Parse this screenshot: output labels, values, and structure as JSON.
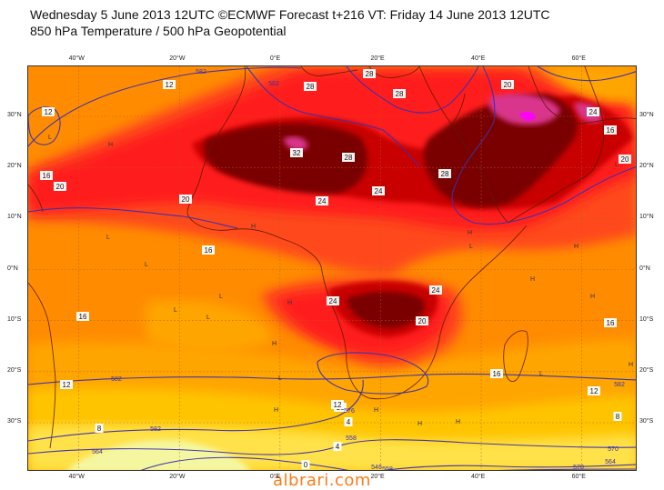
{
  "header": {
    "title_line1": "Wednesday 5 June 2013 12UTC ©ECMWF Forecast t+216 VT: Friday 14 June 2013 12UTC",
    "title_line2": "850 hPa Temperature / 500 hPa Geopotential"
  },
  "map": {
    "lon_ticks": [
      "40°W",
      "20°W",
      "0°E",
      "20°E",
      "40°E",
      "60°E"
    ],
    "lat_ticks": [
      "30°N",
      "20°N",
      "10°N",
      "0°N",
      "10°S",
      "20°S",
      "30°S"
    ],
    "colors": {
      "deep_orange": "#ff8c00",
      "orange": "#ffa500",
      "light_orange": "#ffc400",
      "yellow": "#ffe24a",
      "pale_yellow": "#f4f7a0",
      "red_orange": "#ff4a1a",
      "red": "#ff1a1a",
      "dark_red": "#c80000",
      "maroon": "#7a0000",
      "magenta": "#d9348c",
      "bright_magenta": "#ff00ff",
      "contour": "#3a2fb0",
      "coast": "#5a1a00"
    },
    "temperature_labels": [
      "12",
      "12",
      "16",
      "20",
      "20",
      "16",
      "16",
      "28",
      "32",
      "28",
      "24",
      "28",
      "24",
      "28",
      "28",
      "24",
      "20",
      "24",
      "20",
      "16",
      "16",
      "16",
      "12",
      "12",
      "8",
      "8",
      "4",
      "4",
      "0",
      "20",
      "24",
      "16",
      "12"
    ],
    "geopotential_labels": [
      "582",
      "582",
      "582",
      "582",
      "582",
      "576",
      "570",
      "564",
      "558",
      "546",
      "570",
      "564",
      "558"
    ],
    "high_markers": [
      "H",
      "H",
      "H",
      "H",
      "H",
      "H",
      "H",
      "H",
      "H",
      "H",
      "H",
      "H",
      "H"
    ],
    "low_markers": [
      "L",
      "L",
      "L",
      "L",
      "L",
      "L",
      "L",
      "L",
      "L",
      "L"
    ]
  },
  "watermark": "albrari.com"
}
